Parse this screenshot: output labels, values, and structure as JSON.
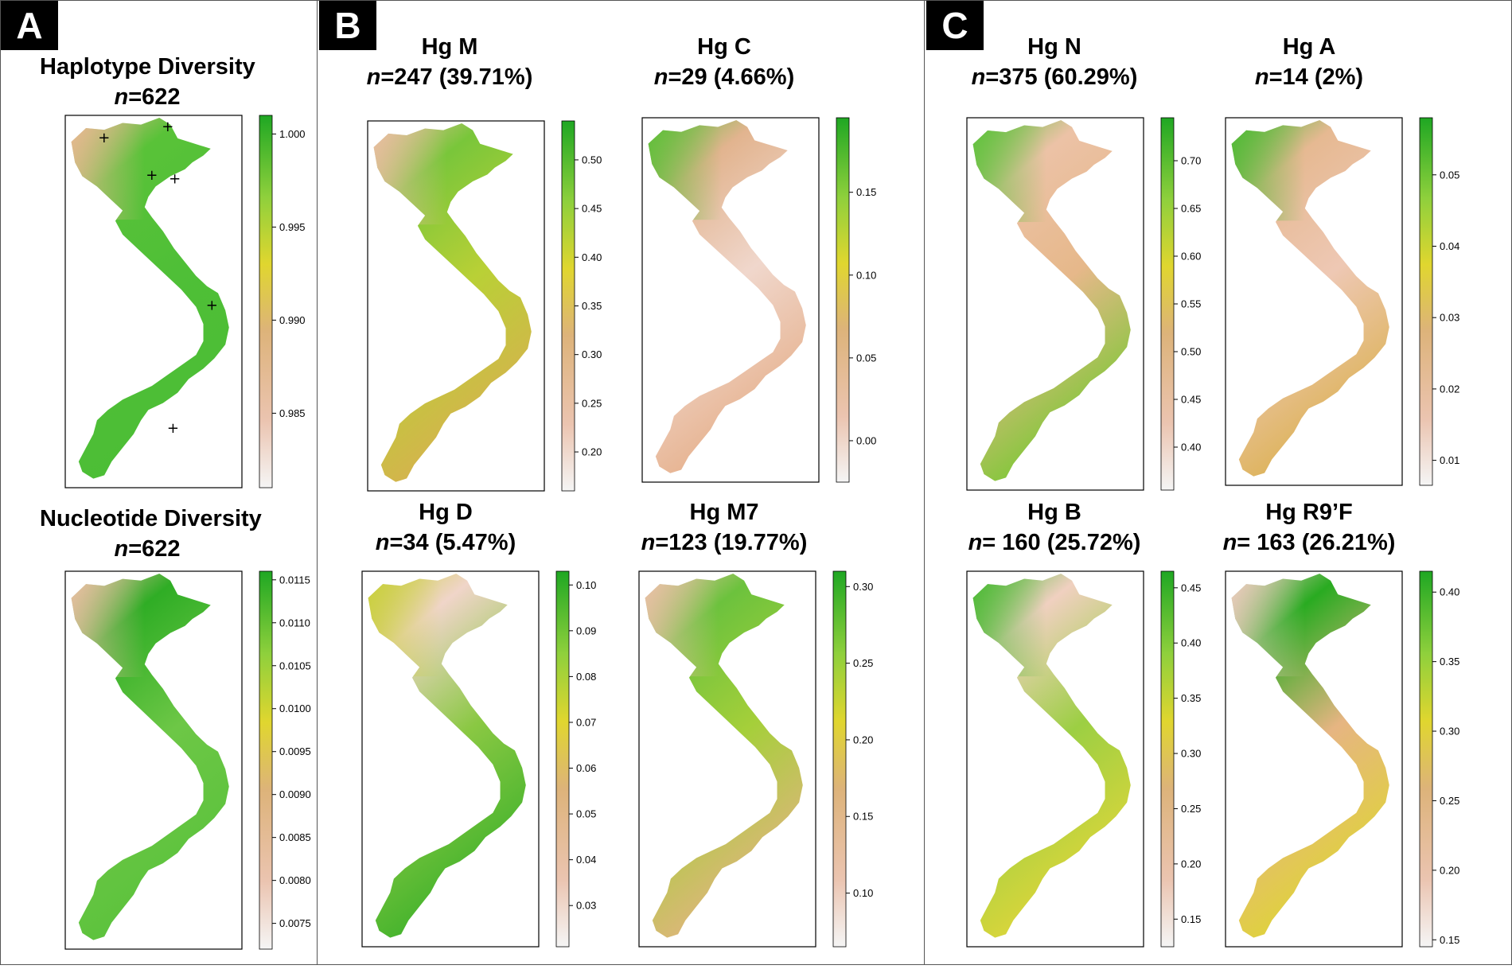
{
  "panels": [
    {
      "label": "A"
    },
    {
      "label": "B"
    },
    {
      "label": "C"
    }
  ],
  "maps": [
    {
      "id": "hap",
      "title": "Haplotype Diversity",
      "n_prefix": "n",
      "n_text": "=622",
      "legend": {
        "ticks": [
          "1.000",
          "0.995",
          "0.990",
          "0.985"
        ],
        "tick_values": [
          1.0,
          0.995,
          0.99,
          0.985
        ],
        "min": 0.981,
        "max": 1.001
      },
      "colors": {
        "north_west": "#e9b892",
        "north": "#59c238",
        "south": "#4cbe35",
        "central": "#4fbf37"
      },
      "markers": [
        "+",
        "+",
        "+",
        "+",
        "+",
        "+"
      ]
    },
    {
      "id": "nuc",
      "title": "Nucleotide Diversity",
      "n_prefix": "n",
      "n_text": "=622",
      "legend": {
        "ticks": [
          "0.0115",
          "0.0110",
          "0.0105",
          "0.0100",
          "0.0095",
          "0.0090",
          "0.0085",
          "0.0080",
          "0.0075"
        ],
        "tick_values": [
          0.0115,
          0.011,
          0.0105,
          0.01,
          0.0095,
          0.009,
          0.0085,
          0.008,
          0.0075
        ],
        "min": 0.0072,
        "max": 0.0116
      },
      "colors": {
        "north_west": "#ebbfa3",
        "north": "#2fad25",
        "south": "#5bc23c",
        "central": "#6dc746"
      }
    },
    {
      "id": "hgM",
      "title": "Hg M",
      "n_prefix": "n",
      "n_text": "=247 (39.71%)",
      "legend": {
        "ticks": [
          "0.50",
          "0.45",
          "0.40",
          "0.35",
          "0.30",
          "0.25",
          "0.20"
        ],
        "tick_values": [
          0.5,
          0.45,
          0.4,
          0.35,
          0.3,
          0.25,
          0.2
        ],
        "min": 0.16,
        "max": 0.54
      },
      "colors": {
        "north_west": "#ebbda2",
        "north": "#79c63a",
        "south": "#d7b14f",
        "central": "#b9d036"
      }
    },
    {
      "id": "hgC",
      "title": "Hg C",
      "n_prefix": "n",
      "n_text": "=29  (4.66%)",
      "legend": {
        "ticks": [
          "0.15",
          "0.10",
          "0.05",
          "0.00"
        ],
        "tick_values": [
          0.15,
          0.1,
          0.05,
          0.0
        ],
        "min": -0.025,
        "max": 0.195
      },
      "colors": {
        "north_west": "#5fbf39",
        "north": "#e2b48f",
        "south": "#e6b18d",
        "central": "#f0d7cc"
      }
    },
    {
      "id": "hgN",
      "title": "Hg N",
      "n_prefix": "n",
      "n_text": "=375  (60.29%)",
      "legend": {
        "ticks": [
          "0.70",
          "0.65",
          "0.60",
          "0.55",
          "0.50",
          "0.45",
          "0.40"
        ],
        "tick_values": [
          0.7,
          0.65,
          0.6,
          0.55,
          0.5,
          0.45,
          0.4
        ],
        "min": 0.355,
        "max": 0.745
      },
      "colors": {
        "north_west": "#5fc23c",
        "north": "#ecc2a6",
        "south": "#7cc835",
        "central": "#e6b88a"
      }
    },
    {
      "id": "hgA",
      "title": "Hg A",
      "n_prefix": "n",
      "n_text": "=14  (2%)",
      "legend": {
        "ticks": [
          "0.05",
          "0.04",
          "0.03",
          "0.02",
          "0.01"
        ],
        "tick_values": [
          0.05,
          0.04,
          0.03,
          0.02,
          0.01
        ],
        "min": 0.0065,
        "max": 0.058
      },
      "colors": {
        "north_west": "#4fba35",
        "north": "#e6b992",
        "south": "#dcb255",
        "central": "#eec8b4"
      }
    },
    {
      "id": "hgD",
      "title": "Hg D",
      "n_prefix": "n",
      "n_text": "=34  (5.47%)",
      "legend": {
        "ticks": [
          "0.10",
          "0.09",
          "0.08",
          "0.07",
          "0.06",
          "0.05",
          "0.04",
          "0.03"
        ],
        "tick_values": [
          0.1,
          0.09,
          0.08,
          0.07,
          0.06,
          0.05,
          0.04,
          0.03
        ],
        "min": 0.021,
        "max": 0.103
      },
      "colors": {
        "north_west": "#c9cf3b",
        "north": "#f0d5c9",
        "south": "#3fb22b",
        "central": "#8ac843"
      }
    },
    {
      "id": "hgM7",
      "title": "Hg M7",
      "n_prefix": "n",
      "n_text": "=123  (19.77%)",
      "legend": {
        "ticks": [
          "0.30",
          "0.25",
          "0.20",
          "0.15",
          "0.10"
        ],
        "tick_values": [
          0.3,
          0.25,
          0.2,
          0.15,
          0.1
        ],
        "min": 0.065,
        "max": 0.31
      },
      "colors": {
        "north_west": "#ebc0a7",
        "north": "#6cc23d",
        "south": "#e0b57e",
        "central": "#a5cf3a"
      }
    },
    {
      "id": "hgB",
      "title": "Hg B",
      "n_prefix": "n",
      "n_text": "= 160 (25.72%)",
      "legend": {
        "ticks": [
          "0.45",
          "0.40",
          "0.35",
          "0.30",
          "0.25",
          "0.20",
          "0.15"
        ],
        "tick_values": [
          0.45,
          0.4,
          0.35,
          0.3,
          0.25,
          0.2,
          0.15
        ],
        "min": 0.125,
        "max": 0.465
      },
      "colors": {
        "north_west": "#4cba35",
        "north": "#f0d0c0",
        "south": "#dfd63a",
        "central": "#9ccf43"
      }
    },
    {
      "id": "hgR9",
      "title": "Hg R9’F",
      "n_prefix": "n",
      "n_text": "= 163 (26.21%)",
      "legend": {
        "ticks": [
          "0.40",
          "0.35",
          "0.30",
          "0.25",
          "0.20",
          "0.15"
        ],
        "tick_values": [
          0.4,
          0.35,
          0.3,
          0.25,
          0.2,
          0.15
        ],
        "min": 0.145,
        "max": 0.415
      },
      "colors": {
        "north_west": "#efccc0",
        "north": "#29ab21",
        "south": "#dfd437",
        "central": "#e6b582"
      }
    }
  ]
}
